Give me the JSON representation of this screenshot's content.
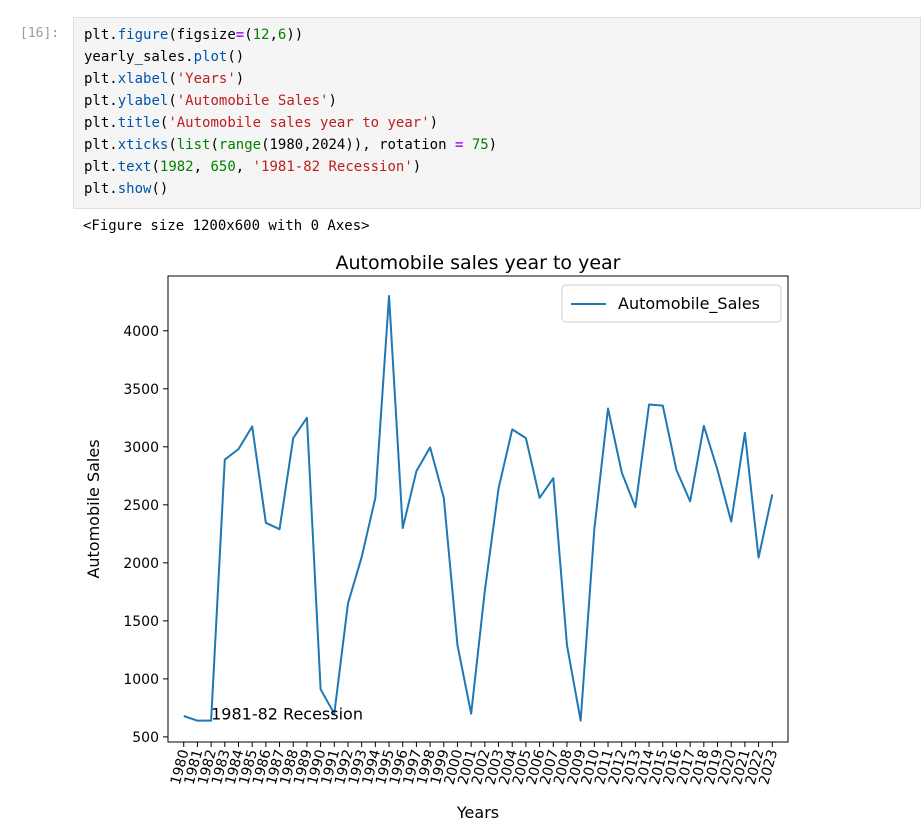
{
  "cell": {
    "prompt": "[16]:",
    "code_lines": [
      [
        {
          "t": "plt",
          "c": "tk-mod"
        },
        {
          "t": ".",
          "c": ""
        },
        {
          "t": "figure",
          "c": "tk-fn"
        },
        {
          "t": "(figsize",
          "c": ""
        },
        {
          "t": "=",
          "c": "tk-op"
        },
        {
          "t": "(",
          "c": ""
        },
        {
          "t": "12",
          "c": "tk-num"
        },
        {
          "t": ",",
          "c": ""
        },
        {
          "t": "6",
          "c": "tk-num"
        },
        {
          "t": "))",
          "c": ""
        }
      ],
      [
        {
          "t": "yearly_sales",
          "c": ""
        },
        {
          "t": ".",
          "c": ""
        },
        {
          "t": "plot",
          "c": "tk-fn"
        },
        {
          "t": "()",
          "c": ""
        }
      ],
      [
        {
          "t": "plt",
          "c": ""
        },
        {
          "t": ".",
          "c": ""
        },
        {
          "t": "xlabel",
          "c": "tk-fn"
        },
        {
          "t": "(",
          "c": ""
        },
        {
          "t": "'Years'",
          "c": "tk-str"
        },
        {
          "t": ")",
          "c": ""
        }
      ],
      [
        {
          "t": "plt",
          "c": ""
        },
        {
          "t": ".",
          "c": ""
        },
        {
          "t": "ylabel",
          "c": "tk-fn"
        },
        {
          "t": "(",
          "c": ""
        },
        {
          "t": "'Automobile Sales'",
          "c": "tk-str"
        },
        {
          "t": ")",
          "c": ""
        }
      ],
      [
        {
          "t": "plt",
          "c": ""
        },
        {
          "t": ".",
          "c": ""
        },
        {
          "t": "title",
          "c": "tk-fn"
        },
        {
          "t": "(",
          "c": ""
        },
        {
          "t": "'Automobile sales year to year'",
          "c": "tk-str"
        },
        {
          "t": ")",
          "c": ""
        }
      ],
      [
        {
          "t": "plt",
          "c": ""
        },
        {
          "t": ".",
          "c": ""
        },
        {
          "t": "xticks",
          "c": "tk-fn"
        },
        {
          "t": "(",
          "c": ""
        },
        {
          "t": "list",
          "c": "tk-kw"
        },
        {
          "t": "(",
          "c": ""
        },
        {
          "t": "range",
          "c": "tk-kw"
        },
        {
          "t": "(1980,2024)), rotation ",
          "c": ""
        },
        {
          "t": "=",
          "c": "tk-op"
        },
        {
          "t": " ",
          "c": ""
        },
        {
          "t": "75",
          "c": "tk-num"
        },
        {
          "t": ")",
          "c": ""
        }
      ],
      [
        {
          "t": "plt",
          "c": ""
        },
        {
          "t": ".",
          "c": ""
        },
        {
          "t": "text",
          "c": "tk-fn"
        },
        {
          "t": "(",
          "c": ""
        },
        {
          "t": "1982",
          "c": "tk-num"
        },
        {
          "t": ", ",
          "c": ""
        },
        {
          "t": "650",
          "c": "tk-num"
        },
        {
          "t": ", ",
          "c": ""
        },
        {
          "t": "'1981-82 Recession'",
          "c": "tk-str"
        },
        {
          "t": ")",
          "c": ""
        }
      ],
      [
        {
          "t": "plt",
          "c": ""
        },
        {
          "t": ".",
          "c": ""
        },
        {
          "t": "show",
          "c": "tk-fn"
        },
        {
          "t": "()",
          "c": ""
        }
      ]
    ]
  },
  "output": {
    "text": "<Figure size 1200x600 with 0 Axes>"
  },
  "chart_data": {
    "type": "line",
    "title": "Automobile sales year to year",
    "xlabel": "Years",
    "ylabel": "Automobile Sales",
    "x": [
      1980,
      1981,
      1982,
      1983,
      1984,
      1985,
      1986,
      1987,
      1988,
      1989,
      1990,
      1991,
      1992,
      1993,
      1994,
      1995,
      1996,
      1997,
      1998,
      1999,
      2000,
      2001,
      2002,
      2003,
      2004,
      2005,
      2006,
      2007,
      2008,
      2009,
      2010,
      2011,
      2012,
      2013,
      2014,
      2015,
      2016,
      2017,
      2018,
      2019,
      2020,
      2021,
      2022,
      2023
    ],
    "series": [
      {
        "name": "Automobile_Sales",
        "color": "#1f77b4",
        "values": [
          680,
          640,
          640,
          2890,
          2980,
          3175,
          2345,
          2290,
          3075,
          3250,
          910,
          700,
          1650,
          2050,
          2560,
          4300,
          2300,
          2790,
          2995,
          2560,
          1290,
          700,
          1760,
          2640,
          3150,
          3075,
          2560,
          2730,
          1290,
          640,
          2290,
          3330,
          2780,
          2480,
          3365,
          3355,
          2800,
          2530,
          3180,
          2800,
          2355,
          3120,
          2045,
          2590
        ]
      }
    ],
    "xticks": [
      "1980",
      "1981",
      "1982",
      "1983",
      "1984",
      "1985",
      "1986",
      "1987",
      "1988",
      "1989",
      "1990",
      "1991",
      "1992",
      "1993",
      "1994",
      "1995",
      "1996",
      "1997",
      "1998",
      "1999",
      "2000",
      "2001",
      "2002",
      "2003",
      "2004",
      "2005",
      "2006",
      "2007",
      "2008",
      "2009",
      "2010",
      "2011",
      "2012",
      "2013",
      "2014",
      "2015",
      "2016",
      "2017",
      "2018",
      "2019",
      "2020",
      "2021",
      "2022",
      "2023"
    ],
    "yticks": [
      500,
      1000,
      1500,
      2000,
      2500,
      3000,
      3500,
      4000
    ],
    "xlim": [
      1978.85,
      2024.15
    ],
    "ylim": [
      456,
      4472
    ],
    "tick_rotation": 75,
    "legend": {
      "location": "upper right",
      "entries": [
        "Automobile_Sales"
      ]
    },
    "grid": false,
    "annotations": [
      {
        "text": "1981-82 Recession",
        "x": 1982,
        "y": 650
      }
    ]
  }
}
